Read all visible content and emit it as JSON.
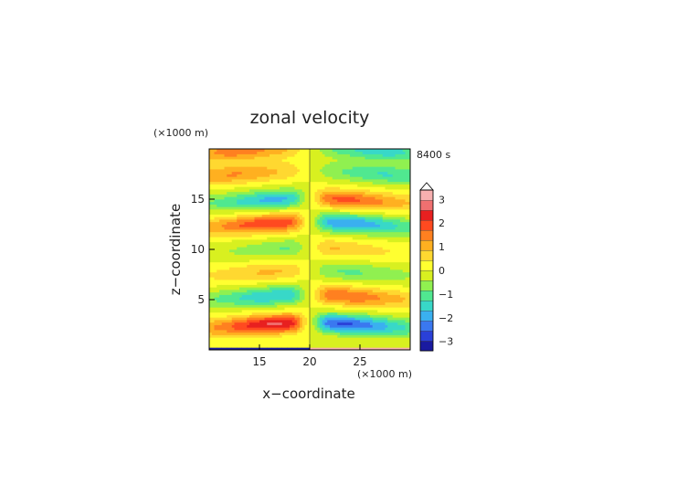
{
  "chart_data": {
    "type": "heatmap",
    "title": "zonal velocity",
    "xlabel": "x−coordinate",
    "ylabel": "z−coordinate",
    "x_unit": "(×1000 m)",
    "y_unit": "(×1000 m)",
    "time_label": "8400 s",
    "xlim": [
      10,
      30
    ],
    "ylim": [
      0,
      20
    ],
    "x_ticks": [
      "15",
      "20",
      "25"
    ],
    "y_ticks": [
      "5",
      "10",
      "15"
    ],
    "colorbar": {
      "tick_labels": [
        "3",
        "2",
        "1",
        "0",
        "−1",
        "−2",
        "−3"
      ],
      "colors": [
        "#1a1aa0",
        "#2a40d8",
        "#3a78f0",
        "#3ab0f0",
        "#38d8c8",
        "#50e890",
        "#90f050",
        "#d8f020",
        "#ffff30",
        "#ffd830",
        "#ffb020",
        "#ff8020",
        "#ff4a20",
        "#e82020",
        "#f07070",
        "#f8b0b0"
      ],
      "levels_min": -3.4,
      "levels_step": 0.425,
      "extend": "max"
    },
    "field_model": {
      "center_x": 20,
      "left_jets": [
        {
          "z": 2.6,
          "amp": 2.6,
          "x_peak": 16.5
        },
        {
          "z": 5.4,
          "amp": -1.7,
          "x_peak": 16.5
        },
        {
          "z": 7.8,
          "amp": 0.9,
          "x_peak": 16.0
        },
        {
          "z": 10.2,
          "amp": -0.9,
          "x_peak": 18.5
        },
        {
          "z": 12.6,
          "amp": 2.1,
          "x_peak": 16.0
        },
        {
          "z": 15.0,
          "amp": -1.8,
          "x_peak": 16.5
        },
        {
          "z": 17.5,
          "amp": 1.3,
          "x_peak": 12.5
        },
        {
          "z": 19.8,
          "amp": 1.5,
          "x_peak": 13.0
        }
      ]
    }
  }
}
